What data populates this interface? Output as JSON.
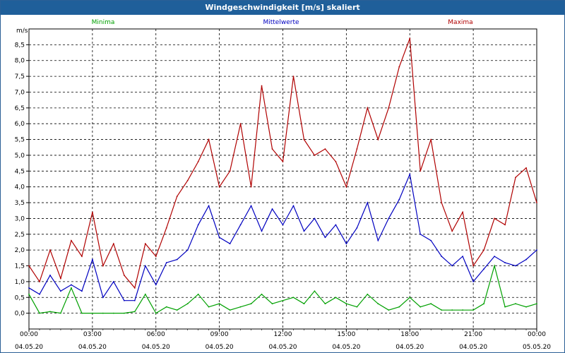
{
  "window": {
    "title": "Windgeschwindigkeit [m/s] skaliert"
  },
  "chart_data": {
    "type": "line",
    "title": "Windgeschwindigkeit [m/s] skaliert",
    "ylabel": "m/s",
    "xlabel": "",
    "ylim": [
      -0.5,
      9.0
    ],
    "yticks": [
      0.0,
      0.5,
      1.0,
      1.5,
      2.0,
      2.5,
      3.0,
      3.5,
      4.0,
      4.5,
      5.0,
      5.5,
      6.0,
      6.5,
      7.0,
      7.5,
      8.0,
      8.5
    ],
    "ytick_labels": [
      "0,0",
      "0,5",
      "1,0",
      "1,5",
      "2,0",
      "2,5",
      "3,0",
      "3,5",
      "4,0",
      "4,5",
      "5,0",
      "5,5",
      "6,0",
      "6,5",
      "7,0",
      "7,5",
      "8,0",
      "8,5"
    ],
    "xlim_hours": [
      0,
      24
    ],
    "xticks_hours": [
      0,
      3,
      6,
      9,
      12,
      15,
      18,
      21,
      24
    ],
    "xtick_labels": [
      {
        "time": "00:00",
        "date": "04.05.20"
      },
      {
        "time": "03:00",
        "date": "04.05.20"
      },
      {
        "time": "06:00",
        "date": "04.05.20"
      },
      {
        "time": "09:00",
        "date": "04.05.20"
      },
      {
        "time": "12:00",
        "date": "04.05.20"
      },
      {
        "time": "15:00",
        "date": "04.05.20"
      },
      {
        "time": "18:00",
        "date": "04.05.20"
      },
      {
        "time": "21:00",
        "date": "04.05.20"
      },
      {
        "time": "00:00",
        "date": "05.05.20"
      }
    ],
    "grid": true,
    "legend_position": "top",
    "series": [
      {
        "name": "Minima",
        "color": "#00a000",
        "x_hours": [
          0,
          0.5,
          1,
          1.5,
          2,
          2.5,
          3,
          3.5,
          4,
          4.5,
          5,
          5.5,
          6,
          6.5,
          7,
          7.5,
          8,
          8.5,
          9,
          9.5,
          10,
          10.5,
          11,
          11.5,
          12,
          12.5,
          13,
          13.5,
          14,
          14.5,
          15,
          15.5,
          16,
          16.5,
          17,
          17.5,
          18,
          18.5,
          19,
          19.5,
          20,
          20.5,
          21,
          21.5,
          22,
          22.5,
          23,
          23.5,
          24
        ],
        "values": [
          0.6,
          0.0,
          0.05,
          0.0,
          0.8,
          0.0,
          0.0,
          0.0,
          0.0,
          0.0,
          0.05,
          0.6,
          0.0,
          0.2,
          0.1,
          0.3,
          0.6,
          0.2,
          0.3,
          0.1,
          0.2,
          0.3,
          0.6,
          0.3,
          0.4,
          0.5,
          0.3,
          0.7,
          0.3,
          0.5,
          0.3,
          0.2,
          0.6,
          0.3,
          0.1,
          0.2,
          0.5,
          0.2,
          0.3,
          0.1,
          0.1,
          0.1,
          0.1,
          0.3,
          1.5,
          0.2,
          0.3,
          0.2,
          0.3
        ]
      },
      {
        "name": "Mittelwerte",
        "color": "#0000c0",
        "x_hours": [
          0,
          0.5,
          1,
          1.5,
          2,
          2.5,
          3,
          3.5,
          4,
          4.5,
          5,
          5.5,
          6,
          6.5,
          7,
          7.5,
          8,
          8.5,
          9,
          9.5,
          10,
          10.5,
          11,
          11.5,
          12,
          12.5,
          13,
          13.5,
          14,
          14.5,
          15,
          15.5,
          16,
          16.5,
          17,
          17.5,
          18,
          18.5,
          19,
          19.5,
          20,
          20.5,
          21,
          21.5,
          22,
          22.5,
          23,
          23.5,
          24
        ],
        "values": [
          0.8,
          0.6,
          1.2,
          0.7,
          0.9,
          0.7,
          1.7,
          0.5,
          1.0,
          0.4,
          0.4,
          1.5,
          0.9,
          1.6,
          1.7,
          2.0,
          2.8,
          3.4,
          2.4,
          2.2,
          2.8,
          3.4,
          2.6,
          3.3,
          2.8,
          3.4,
          2.6,
          3.0,
          2.4,
          2.8,
          2.2,
          2.7,
          3.5,
          2.3,
          3.0,
          3.6,
          4.4,
          2.5,
          2.3,
          1.8,
          1.5,
          1.8,
          1.0,
          1.4,
          1.8,
          1.6,
          1.5,
          1.7,
          2.0
        ]
      },
      {
        "name": "Maxima",
        "color": "#b00000",
        "x_hours": [
          0,
          0.5,
          1,
          1.5,
          2,
          2.5,
          3,
          3.5,
          4,
          4.5,
          5,
          5.5,
          6,
          6.5,
          7,
          7.5,
          8,
          8.5,
          9,
          9.5,
          10,
          10.5,
          11,
          11.5,
          12,
          12.5,
          13,
          13.5,
          14,
          14.5,
          15,
          15.5,
          16,
          16.5,
          17,
          17.5,
          18,
          18.5,
          19,
          19.5,
          20,
          20.5,
          21,
          21.5,
          22,
          22.5,
          23,
          23.5,
          24
        ],
        "values": [
          1.5,
          1.0,
          2.0,
          1.1,
          2.3,
          1.8,
          3.2,
          1.5,
          2.2,
          1.2,
          0.8,
          2.2,
          1.8,
          2.7,
          3.7,
          4.2,
          4.8,
          5.5,
          4.0,
          4.5,
          6.0,
          4.0,
          7.2,
          5.2,
          4.8,
          7.5,
          5.5,
          5.0,
          5.2,
          4.8,
          4.0,
          5.2,
          6.5,
          5.5,
          6.5,
          7.8,
          8.7,
          4.5,
          5.5,
          3.5,
          2.6,
          3.2,
          1.5,
          2.0,
          3.0,
          2.8,
          4.3,
          4.6,
          3.5
        ]
      }
    ]
  }
}
